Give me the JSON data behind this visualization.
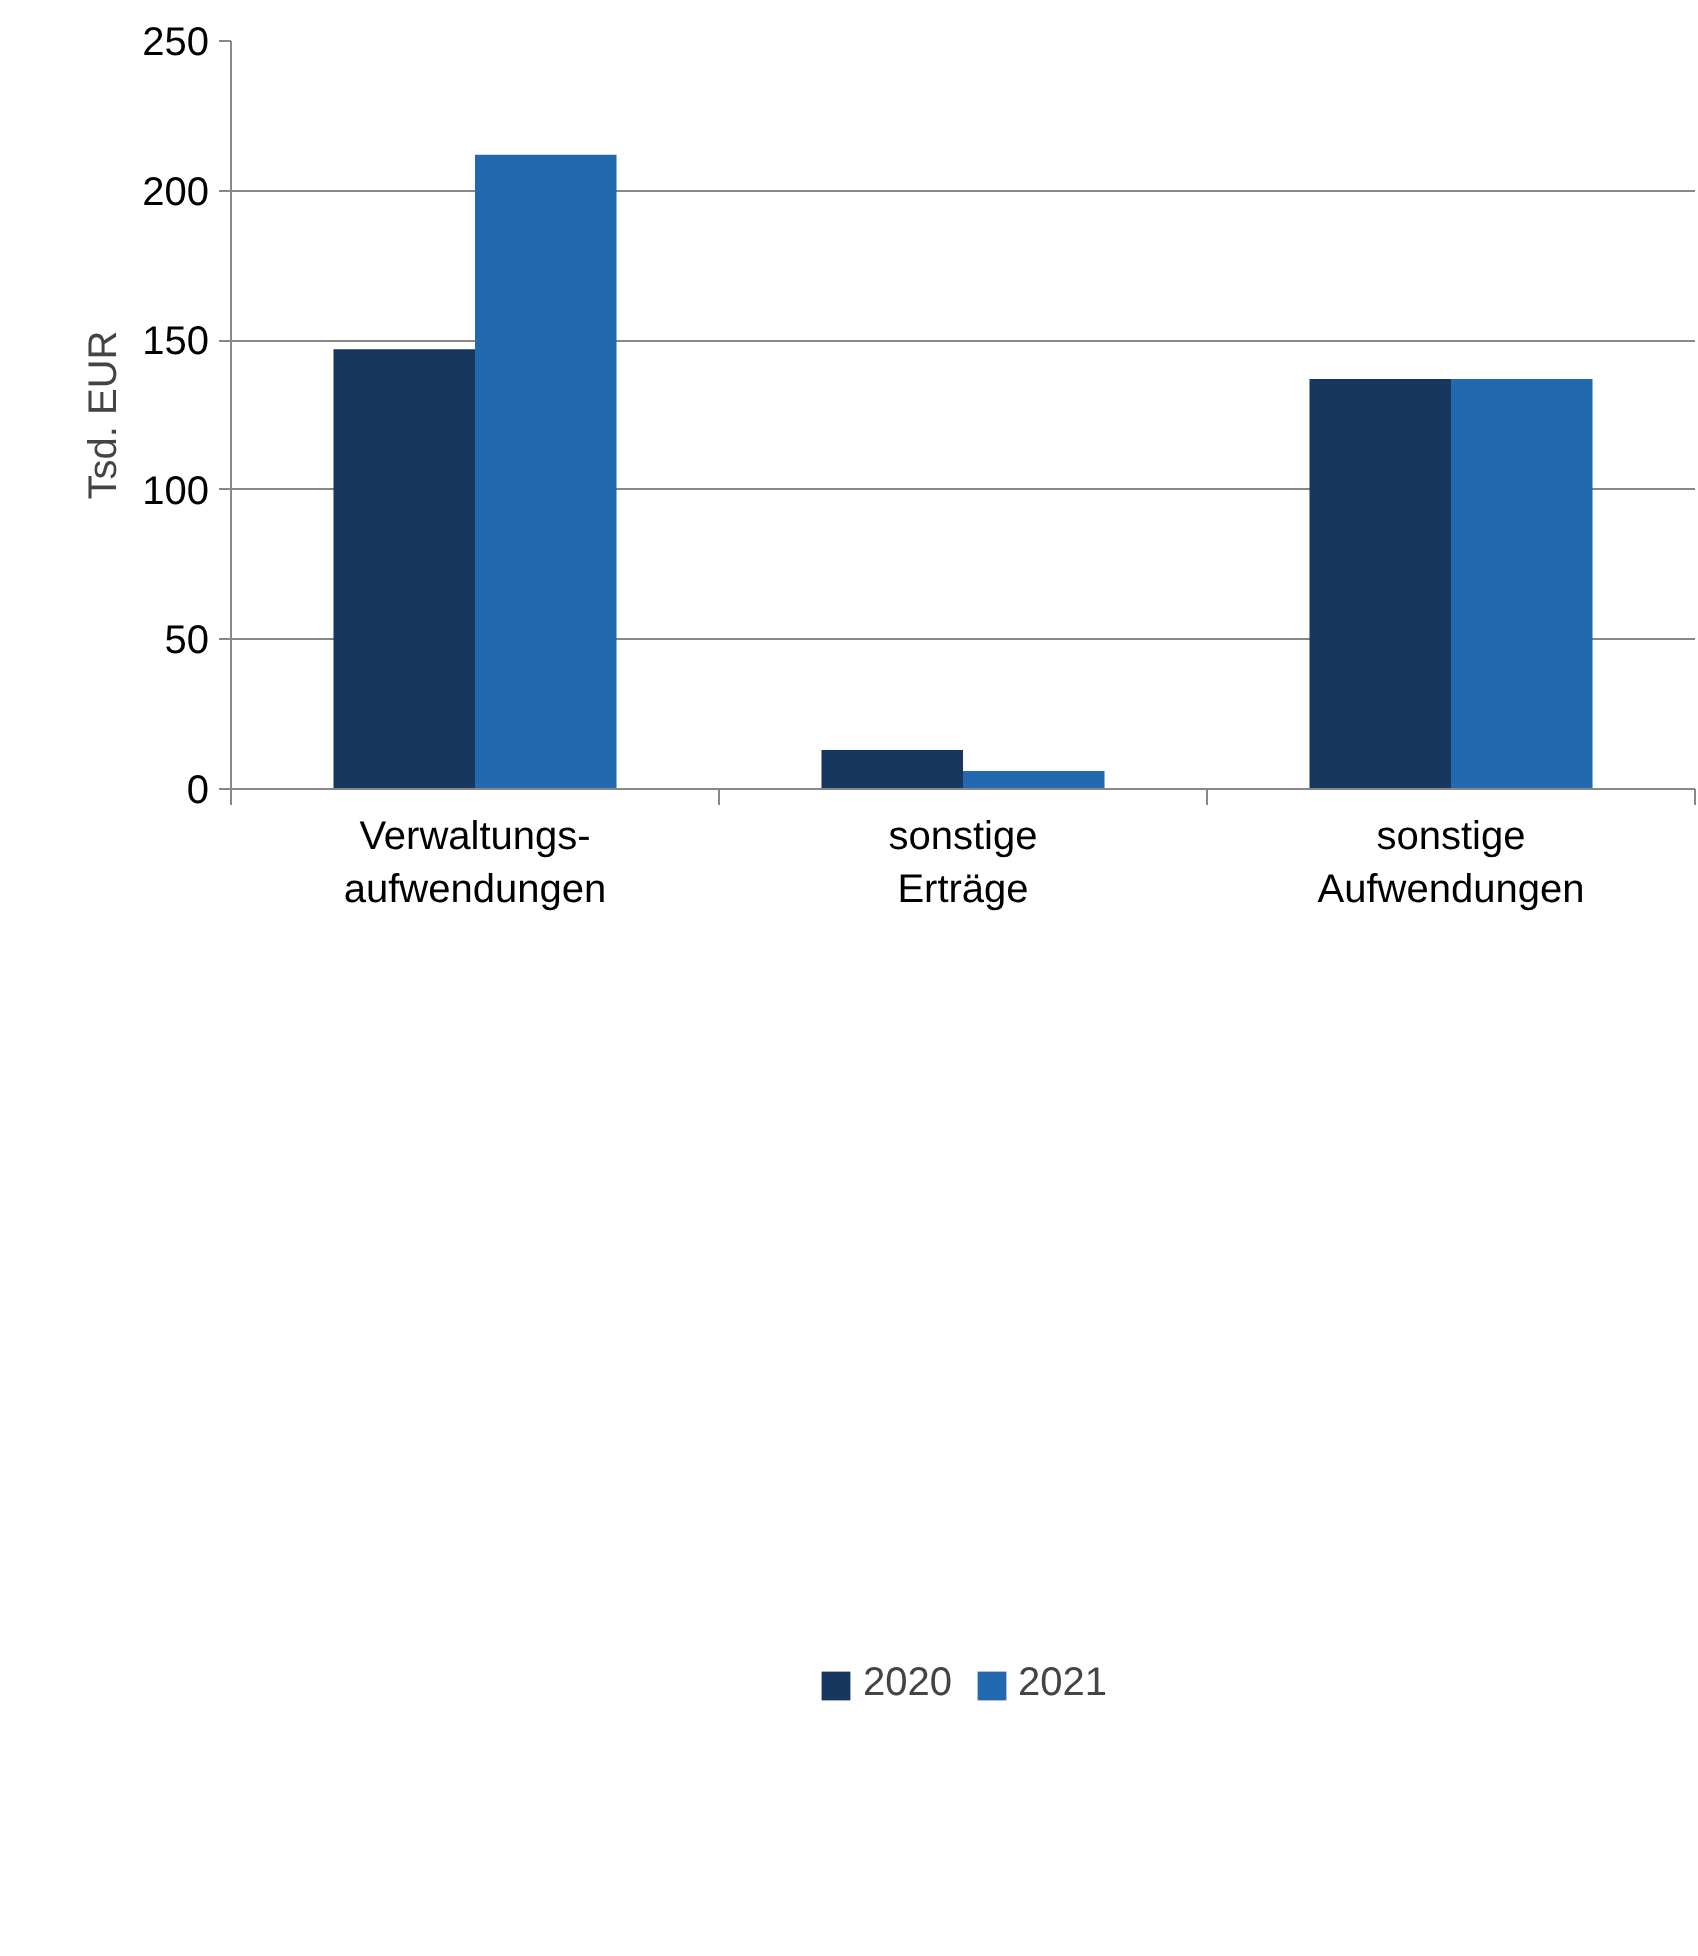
{
  "chart_data": {
    "type": "bar",
    "ylabel": "Tsd. EUR",
    "categories": [
      "Verwaltungs-\naufwendungen",
      "sonstige\nErträge",
      "sonstige\nAufwendungen"
    ],
    "series": [
      {
        "name": "2020",
        "color": "#17375e",
        "values": [
          147,
          13,
          137
        ]
      },
      {
        "name": "2021",
        "color": "#2369b0",
        "values": [
          212,
          6,
          137
        ]
      }
    ],
    "ylim": [
      0,
      250
    ],
    "yticks": [
      0,
      50,
      100,
      150,
      200,
      250
    ],
    "grid": "y",
    "legend": "bottom"
  }
}
